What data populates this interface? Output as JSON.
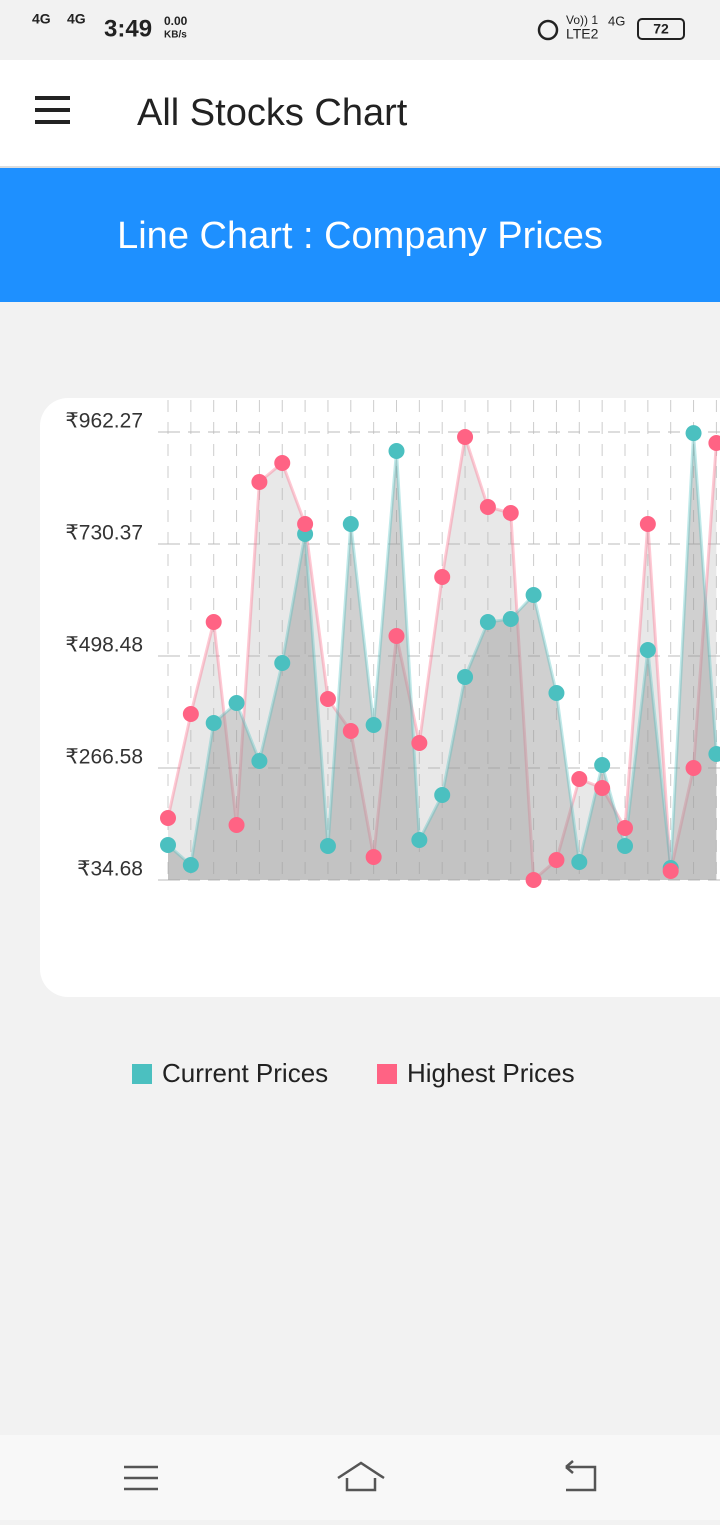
{
  "status_bar": {
    "network": [
      "4G",
      "4G"
    ],
    "time": "3:49",
    "speed": "0.00",
    "speed_unit": "KB/s",
    "volte": "Vo)) 1",
    "lte": "LTE2",
    "network2": "4G",
    "battery": "72"
  },
  "app_bar": {
    "title": "All Stocks Chart"
  },
  "banner": {
    "title": "Line Chart : Company Prices"
  },
  "chart_data": {
    "type": "line",
    "categories": [
      null,
      null,
      null,
      null,
      null,
      null,
      null,
      null,
      null,
      null,
      null,
      null,
      null,
      null,
      null,
      null,
      null,
      null,
      null,
      null,
      null,
      null,
      null,
      null,
      null
    ],
    "series": [
      {
        "name": "Current Prices",
        "color": "#4bc0c0",
        "fill": "rgba(150,150,150,0.45)",
        "values": [
          107.2,
          65.7,
          359.8,
          401.2,
          281.1,
          484.0,
          751.1,
          105.1,
          771.8,
          355.6,
          922.9,
          117.5,
          210.7,
          455.0,
          568.9,
          575.1,
          624.8,
          421.9,
          72.0,
          272.8,
          105.1,
          510.9,
          59.5,
          960.0,
          295.6
        ]
      },
      {
        "name": "Highest Prices",
        "color": "#ff6384",
        "fill": "rgba(180,180,180,0.3)",
        "values": [
          163.1,
          378.4,
          568.9,
          148.6,
          858.8,
          898.1,
          771.8,
          409.5,
          343.2,
          82.3,
          539.9,
          318.4,
          662.1,
          951.9,
          807.0,
          794.6,
          34.68,
          76.1,
          243.8,
          225.2,
          142.4,
          771.8,
          53.3,
          266.6,
          939.5
        ]
      }
    ],
    "ylim": [
      34.68,
      962.27
    ],
    "yticks": [
      {
        "value": 34.68,
        "label": "₹34.68"
      },
      {
        "value": 266.58,
        "label": "₹266.58"
      },
      {
        "value": 498.48,
        "label": "₹498.48"
      },
      {
        "value": 730.37,
        "label": "₹730.37"
      },
      {
        "value": 962.27,
        "label": "₹962.27"
      }
    ],
    "grid": true,
    "legend": "bottom"
  }
}
